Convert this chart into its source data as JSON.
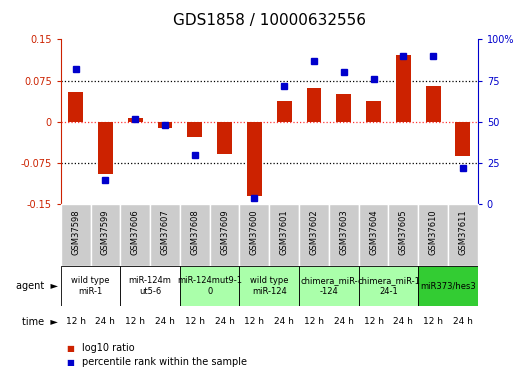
{
  "title": "GDS1858 / 10000632556",
  "samples": [
    "GSM37598",
    "GSM37599",
    "GSM37606",
    "GSM37607",
    "GSM37608",
    "GSM37609",
    "GSM37600",
    "GSM37601",
    "GSM37602",
    "GSM37603",
    "GSM37604",
    "GSM37605",
    "GSM37610",
    "GSM37611"
  ],
  "log10_ratio": [
    0.055,
    -0.095,
    0.007,
    -0.012,
    -0.028,
    -0.058,
    -0.135,
    0.038,
    0.062,
    0.05,
    0.038,
    0.122,
    0.065,
    -0.062
  ],
  "percentile_rank": [
    82,
    15,
    52,
    48,
    30,
    null,
    4,
    72,
    87,
    80,
    76,
    90,
    90,
    22
  ],
  "ylim_left": [
    -0.15,
    0.15
  ],
  "ylim_right": [
    0,
    100
  ],
  "yticks_left": [
    -0.15,
    -0.075,
    0,
    0.075,
    0.15
  ],
  "yticks_right": [
    0,
    25,
    50,
    75,
    100
  ],
  "ytick_labels_left": [
    "-0.15",
    "-0.075",
    "0",
    "0.075",
    "0.15"
  ],
  "ytick_labels_right": [
    "0",
    "25",
    "50",
    "75",
    "100%"
  ],
  "bar_color": "#cc2200",
  "dot_color": "#0000cc",
  "agent_groups": [
    {
      "label": "wild type\nmiR-1",
      "cols": [
        0,
        1
      ],
      "color": "#ffffff"
    },
    {
      "label": "miR-124m\nut5-6",
      "cols": [
        2,
        3
      ],
      "color": "#ffffff"
    },
    {
      "label": "miR-124mut9-1\n0",
      "cols": [
        4,
        5
      ],
      "color": "#aaffaa"
    },
    {
      "label": "wild type\nmiR-124",
      "cols": [
        6,
        7
      ],
      "color": "#aaffaa"
    },
    {
      "label": "chimera_miR-\n-124",
      "cols": [
        8,
        9
      ],
      "color": "#aaffaa"
    },
    {
      "label": "chimera_miR-1\n24-1",
      "cols": [
        10,
        11
      ],
      "color": "#aaffaa"
    },
    {
      "label": "miR373/hes3",
      "cols": [
        12,
        13
      ],
      "color": "#33cc33"
    }
  ],
  "time_labels": [
    "12 h",
    "24 h",
    "12 h",
    "24 h",
    "12 h",
    "24 h",
    "12 h",
    "24 h",
    "12 h",
    "24 h",
    "12 h",
    "24 h",
    "12 h",
    "24 h"
  ],
  "time_color": "#ee44ee",
  "bg_color": "#ffffff",
  "left_axis_color": "#cc2200",
  "right_axis_color": "#0000cc",
  "title_fontsize": 11,
  "tick_fontsize": 7,
  "sample_fontsize": 6,
  "agent_fontsize": 6,
  "time_fontsize": 6.5,
  "legend_fontsize": 7
}
